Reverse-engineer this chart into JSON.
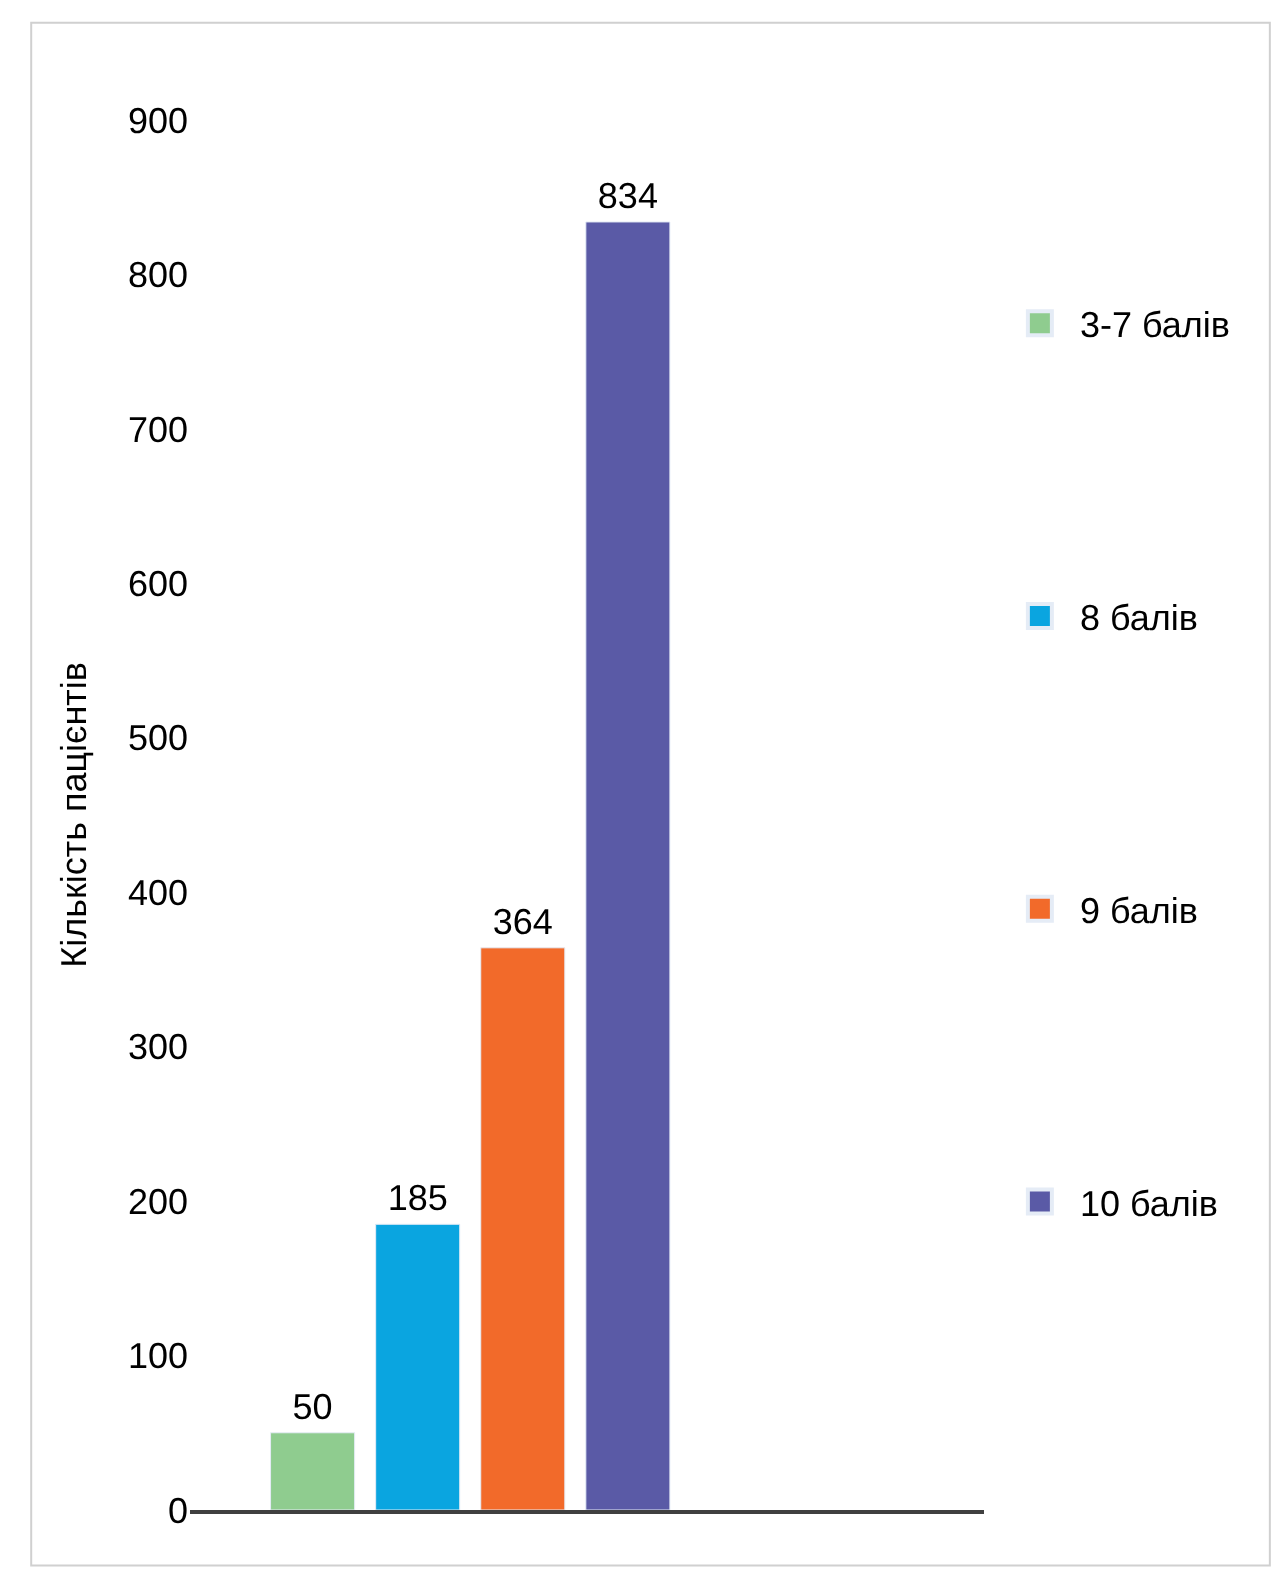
{
  "chart_data": {
    "type": "bar",
    "ylabel": "Кількість пацієнтів",
    "categories": [
      null
    ],
    "series": [
      {
        "name": "3-7 балів",
        "color": "#8fcc8f",
        "values": [
          50
        ]
      },
      {
        "name": "8 балів",
        "color": "#0aa5e0",
        "values": [
          185
        ]
      },
      {
        "name": "9 балів",
        "color": "#f26a2a",
        "values": [
          364
        ]
      },
      {
        "name": "10 балів",
        "color": "#5a5aa6",
        "values": [
          834
        ]
      }
    ],
    "ylim": [
      0,
      900
    ],
    "yticks": [
      0,
      100,
      200,
      300,
      400,
      500,
      600,
      700,
      800,
      900
    ],
    "legend": "right",
    "data_labels": true
  }
}
